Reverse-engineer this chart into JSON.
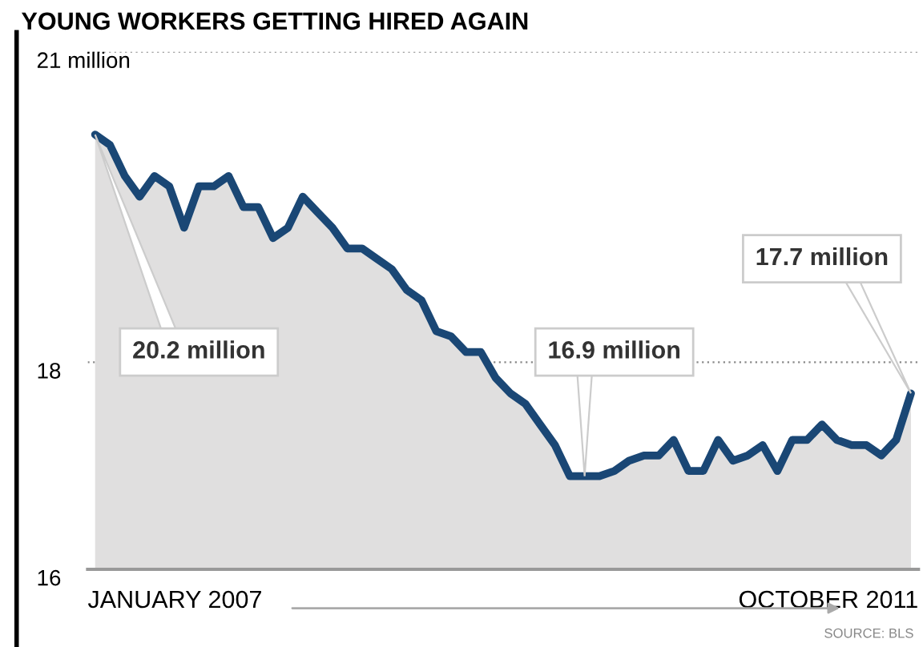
{
  "chart_data": {
    "type": "area",
    "title": "YOUNG WORKERS GETTING HIRED AGAIN",
    "categories": [
      null,
      null,
      null,
      null,
      null,
      null,
      null,
      null,
      null,
      null,
      null,
      null,
      null,
      null,
      null,
      null,
      null,
      null,
      null,
      null,
      null,
      null,
      null,
      null,
      null,
      null,
      null,
      null,
      null,
      null,
      null,
      null,
      null,
      null,
      null,
      null,
      null,
      null,
      null,
      null,
      null,
      null,
      null,
      null,
      null,
      null,
      null,
      null,
      null,
      null,
      null,
      null,
      null,
      null,
      null,
      null
    ],
    "series": [
      {
        "color": "#1a4775",
        "values": [
          20.2,
          20.1,
          19.8,
          19.6,
          19.8,
          19.7,
          19.3,
          19.7,
          19.7,
          19.8,
          19.5,
          19.5,
          19.2,
          19.3,
          19.6,
          19.45,
          19.3,
          19.1,
          19.1,
          19.0,
          18.9,
          18.7,
          18.6,
          18.3,
          18.25,
          18.1,
          18.1,
          17.85,
          17.7,
          17.6,
          17.4,
          17.2,
          16.9,
          16.9,
          16.9,
          16.95,
          17.05,
          17.1,
          17.1,
          17.25,
          16.95,
          16.95,
          17.25,
          17.05,
          17.1,
          17.2,
          16.95,
          17.25,
          17.25,
          17.4,
          17.25,
          17.2,
          17.2,
          17.1,
          17.25,
          17.7
        ]
      }
    ],
    "ylim": [
      16,
      21
    ],
    "yticks": [
      16,
      18,
      {
        "value": 21,
        "label": "21 million"
      }
    ],
    "grid": "y",
    "annotations": [
      "20.2 million",
      "16.9 million",
      "17.7 million",
      "JANUARY 2007",
      "OCTOBER 2011",
      "SOURCE: BLS"
    ]
  }
}
